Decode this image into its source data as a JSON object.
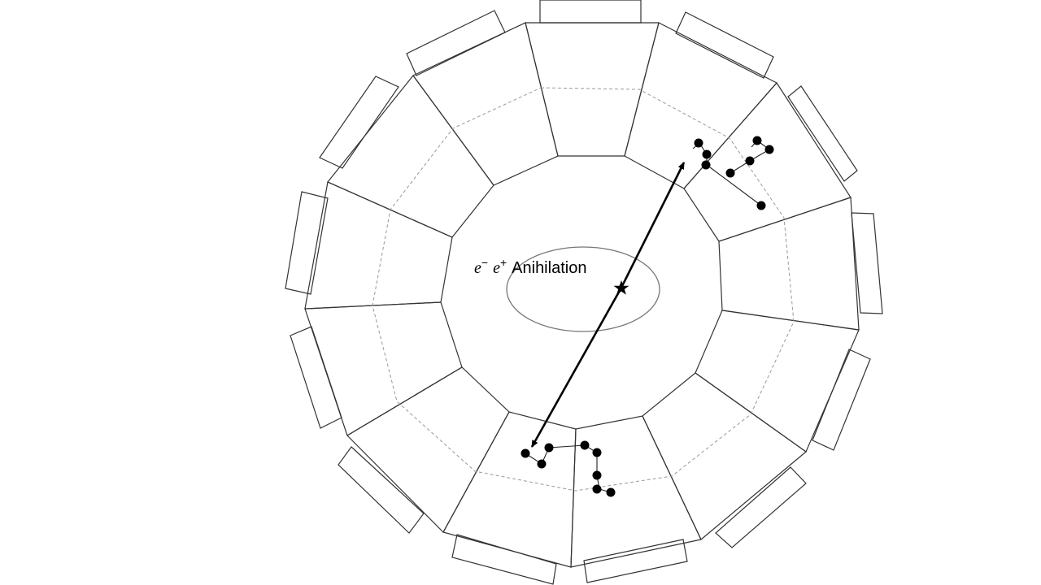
{
  "diagram": {
    "label_electron": "e",
    "label_electron_sign": "−",
    "label_positron": "e",
    "label_positron_sign": "+",
    "label_word": "Anihilation",
    "detector_segments": 12,
    "colors": {
      "line": "#333333",
      "dashed": "#999999",
      "beam_spot": "#777777",
      "track": "#000000"
    }
  }
}
